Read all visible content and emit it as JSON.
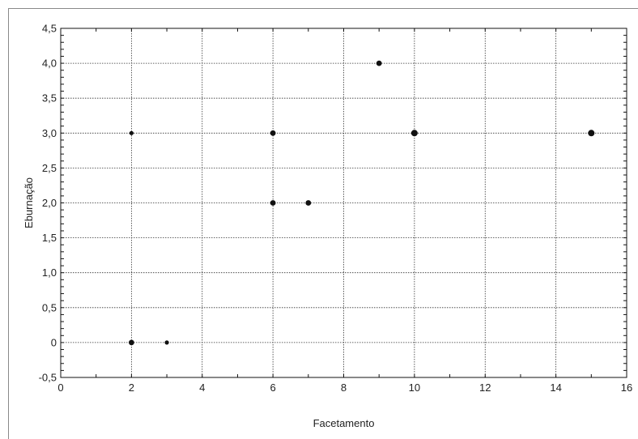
{
  "chart_data": {
    "type": "scatter",
    "xlabel": "Facetamento",
    "ylabel": "Eburnação",
    "xlim": [
      0,
      16
    ],
    "ylim": [
      -0.5,
      4.5
    ],
    "xticks": [
      {
        "value": 0,
        "label": "0"
      },
      {
        "value": 2,
        "label": "2"
      },
      {
        "value": 4,
        "label": "4"
      },
      {
        "value": 6,
        "label": "6"
      },
      {
        "value": 8,
        "label": "8"
      },
      {
        "value": 10,
        "label": "10"
      },
      {
        "value": 12,
        "label": "12"
      },
      {
        "value": 14,
        "label": "14"
      },
      {
        "value": 16,
        "label": "16"
      }
    ],
    "yticks": [
      {
        "value": -0.5,
        "label": "-0,5"
      },
      {
        "value": 0,
        "label": "0"
      },
      {
        "value": 0.5,
        "label": "0,5"
      },
      {
        "value": 1.0,
        "label": "1,0"
      },
      {
        "value": 1.5,
        "label": "1,5"
      },
      {
        "value": 2.0,
        "label": "2,0"
      },
      {
        "value": 2.5,
        "label": "2,5"
      },
      {
        "value": 3.0,
        "label": "3,0"
      },
      {
        "value": 3.5,
        "label": "3,5"
      },
      {
        "value": 4.0,
        "label": "4,0"
      },
      {
        "value": 4.5,
        "label": "4,5"
      }
    ],
    "grid": true,
    "marker_color": "#111111",
    "points": [
      {
        "x": 2,
        "y": 3.0,
        "weight": 1
      },
      {
        "x": 2,
        "y": 0,
        "weight": 2
      },
      {
        "x": 3,
        "y": 0,
        "weight": 1
      },
      {
        "x": 6,
        "y": 3.0,
        "weight": 2
      },
      {
        "x": 6,
        "y": 2.0,
        "weight": 2
      },
      {
        "x": 7,
        "y": 2.0,
        "weight": 2
      },
      {
        "x": 9,
        "y": 4.0,
        "weight": 2
      },
      {
        "x": 10,
        "y": 3.0,
        "weight": 3
      },
      {
        "x": 15,
        "y": 3.0,
        "weight": 3
      }
    ]
  }
}
